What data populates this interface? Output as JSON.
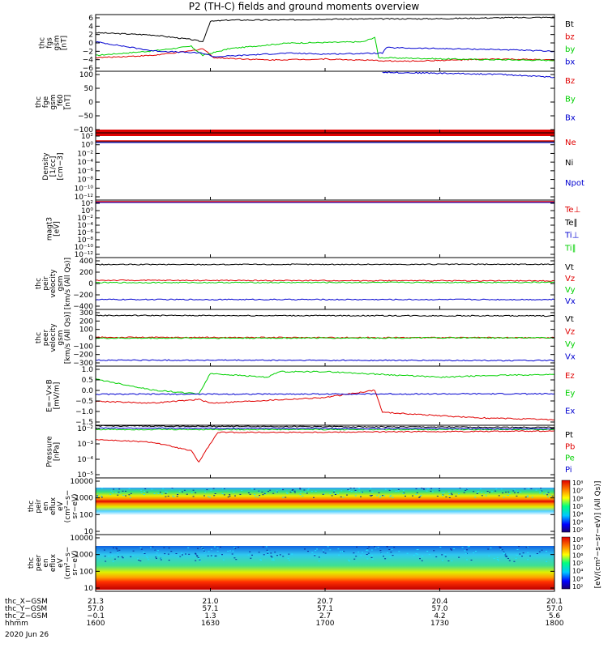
{
  "title": "P2 (TH-C) fields and ground moments overview",
  "date_label": "2020 Jun 26",
  "colors": {
    "black": "#000000",
    "red": "#e00000",
    "green": "#00d000",
    "blue": "#0000d0"
  },
  "chart_data": [
    {
      "type": "line",
      "ylabel_lines": [
        "thc",
        "fgs",
        "gsm",
        "[nT]"
      ],
      "yticks": [
        "6",
        "4",
        "2",
        "0",
        "−2",
        "−4",
        "−6"
      ],
      "ylim": [
        -6,
        6.5
      ],
      "legend": [
        {
          "name": "Bt",
          "color": "black"
        },
        {
          "name": "bz",
          "color": "red"
        },
        {
          "name": "by",
          "color": "green"
        },
        {
          "name": "bx",
          "color": "blue"
        }
      ],
      "series": [
        {
          "name": "Bt",
          "color": "black",
          "points": [
            [
              1600,
              2.5
            ],
            [
              1615,
              2.0
            ],
            [
              1625,
              1.0
            ],
            [
              1628,
              0.5
            ],
            [
              1630,
              5.0
            ],
            [
              1635,
              5.3
            ],
            [
              1650,
              5.3
            ],
            [
              1700,
              5.5
            ],
            [
              1730,
              5.6
            ],
            [
              1745,
              5.8
            ],
            [
              1800,
              5.9
            ]
          ]
        },
        {
          "name": "bz",
          "color": "red",
          "points": [
            [
              1600,
              -3.0
            ],
            [
              1615,
              -2.5
            ],
            [
              1625,
              -1.5
            ],
            [
              1628,
              -1.0
            ],
            [
              1631,
              -3.0
            ],
            [
              1645,
              -3.5
            ],
            [
              1700,
              -3.3
            ],
            [
              1720,
              -3.8
            ],
            [
              1745,
              -3.3
            ],
            [
              1800,
              -3.5
            ]
          ]
        },
        {
          "name": "by",
          "color": "green",
          "points": [
            [
              1600,
              -2.5
            ],
            [
              1615,
              -1.5
            ],
            [
              1625,
              -0.5
            ],
            [
              1628,
              -2.5
            ],
            [
              1635,
              -1.0
            ],
            [
              1650,
              0.2
            ],
            [
              1710,
              0.5
            ],
            [
              1713,
              1.5
            ],
            [
              1714,
              -3.0
            ],
            [
              1740,
              -3.4
            ],
            [
              1800,
              -3.6
            ]
          ]
        },
        {
          "name": "bx",
          "color": "blue",
          "points": [
            [
              1600,
              0.5
            ],
            [
              1615,
              -1.5
            ],
            [
              1628,
              -2.0
            ],
            [
              1631,
              -2.8
            ],
            [
              1650,
              -2.0
            ],
            [
              1700,
              -2.2
            ],
            [
              1715,
              -2.0
            ],
            [
              1716,
              -0.8
            ],
            [
              1745,
              -1.2
            ],
            [
              1800,
              -1.6
            ]
          ]
        }
      ]
    },
    {
      "type": "line",
      "ylabel_lines": [
        "thc",
        "fge",
        "gsm",
        "_f60",
        "[nT]"
      ],
      "yticks": [
        "100",
        "50",
        "0",
        "−50",
        "−100"
      ],
      "ylim": [
        -140,
        110
      ],
      "legend": [
        {
          "name": "Bz",
          "color": "red"
        },
        {
          "name": "By",
          "color": "green"
        },
        {
          "name": "Bx",
          "color": "blue"
        }
      ],
      "series": [
        {
          "name": "Bx",
          "color": "blue",
          "points": [
            [
              1715,
              106
            ],
            [
              1745,
              98
            ],
            [
              1800,
              86
            ]
          ]
        }
      ]
    },
    {
      "type": "line",
      "ylabel_lines": [
        "Density",
        "[1/cc]",
        "[cm−3]"
      ],
      "yticks": [
        "10²",
        "10⁰",
        "10⁻²",
        "10⁻⁴",
        "10⁻⁶",
        "10⁻⁸",
        "10⁻¹⁰",
        "10⁻¹²"
      ],
      "legend": [
        {
          "name": "Ne",
          "color": "red"
        },
        {
          "name": "Ni",
          "color": "black"
        },
        {
          "name": "Npot",
          "color": "blue"
        }
      ]
    },
    {
      "type": "line",
      "ylabel_lines": [
        "magt3",
        "[eV]"
      ],
      "yticks": [
        "10²",
        "10⁰",
        "10⁻²",
        "10⁻⁴",
        "10⁻⁶",
        "10⁻⁸",
        "10⁻¹⁰",
        "10⁻¹²"
      ],
      "legend": [
        {
          "name": "Te⊥",
          "color": "red"
        },
        {
          "name": "Te∥",
          "color": "black"
        },
        {
          "name": "Ti⊥",
          "color": "blue"
        },
        {
          "name": "Ti∥",
          "color": "green"
        }
      ]
    },
    {
      "type": "line",
      "ylabel_lines": [
        "thc",
        "peir",
        "velocity",
        "gsm",
        "[km/s (All Qs)]"
      ],
      "yticks": [
        "400",
        "200",
        "0",
        "−200",
        "−400"
      ],
      "ylim": [
        -470,
        420
      ],
      "legend": [
        {
          "name": "Vt",
          "color": "black"
        },
        {
          "name": "Vz",
          "color": "red"
        },
        {
          "name": "Vy",
          "color": "green"
        },
        {
          "name": "Vx",
          "color": "blue"
        }
      ],
      "series": [
        {
          "name": "Vt",
          "color": "black",
          "points": [
            [
              1600,
              300
            ],
            [
              1800,
              305
            ]
          ]
        },
        {
          "name": "Vz",
          "color": "red",
          "points": [
            [
              1600,
              30
            ],
            [
              1800,
              20
            ]
          ]
        },
        {
          "name": "Vy",
          "color": "green",
          "points": [
            [
              1600,
              -10
            ],
            [
              1800,
              -5
            ]
          ]
        },
        {
          "name": "Vx",
          "color": "blue",
          "points": [
            [
              1600,
              -300
            ],
            [
              1800,
              -300
            ]
          ]
        }
      ]
    },
    {
      "type": "line",
      "ylabel_lines": [
        "thc",
        "peer",
        "velocity",
        "gsm",
        "[km/s (All Qs)]"
      ],
      "yticks": [
        "300",
        "200",
        "100",
        "0",
        "−100",
        "−200",
        "−300"
      ],
      "ylim": [
        -330,
        330
      ],
      "legend": [
        {
          "name": "Vt",
          "color": "black"
        },
        {
          "name": "Vz",
          "color": "red"
        },
        {
          "name": "Vy",
          "color": "green"
        },
        {
          "name": "Vx",
          "color": "blue"
        }
      ],
      "series": [
        {
          "name": "Vt",
          "color": "black",
          "points": [
            [
              1600,
              260
            ],
            [
              1800,
              255
            ]
          ]
        },
        {
          "name": "Vz",
          "color": "red",
          "points": [
            [
              1600,
              5
            ],
            [
              1800,
              0
            ]
          ]
        },
        {
          "name": "Vy",
          "color": "green",
          "points": [
            [
              1600,
              -5
            ],
            [
              1800,
              0
            ]
          ]
        },
        {
          "name": "Vx",
          "color": "blue",
          "points": [
            [
              1600,
              -260
            ],
            [
              1800,
              -265
            ]
          ]
        }
      ]
    },
    {
      "type": "line",
      "ylabel_lines": [
        "E=−V×B",
        "[mV/m]"
      ],
      "yticks": [
        "1.0",
        "0.5",
        "0.0",
        "−0.5",
        "−1.0",
        "−1.5"
      ],
      "ylim": [
        -1.7,
        1.5
      ],
      "legend": [
        {
          "name": "Ez",
          "color": "red"
        },
        {
          "name": "Ey",
          "color": "green"
        },
        {
          "name": "Ex",
          "color": "blue"
        }
      ],
      "series": [
        {
          "name": "Ey",
          "color": "green",
          "points": [
            [
              1600,
              0.8
            ],
            [
              1615,
              0.2
            ],
            [
              1627,
              0.0
            ],
            [
              1630,
              1.1
            ],
            [
              1645,
              0.9
            ],
            [
              1648,
              1.2
            ],
            [
              1700,
              1.2
            ],
            [
              1730,
              0.9
            ],
            [
              1745,
              1.0
            ],
            [
              1800,
              1.05
            ]
          ]
        },
        {
          "name": "Ez",
          "color": "red",
          "points": [
            [
              1600,
              -0.4
            ],
            [
              1615,
              -0.5
            ],
            [
              1627,
              -0.3
            ],
            [
              1630,
              -0.5
            ],
            [
              1700,
              -0.2
            ],
            [
              1713,
              0.2
            ],
            [
              1715,
              -1.0
            ],
            [
              1740,
              -1.3
            ],
            [
              1800,
              -1.4
            ]
          ]
        },
        {
          "name": "Ex",
          "color": "blue",
          "points": [
            [
              1600,
              -0.02
            ],
            [
              1800,
              0.0
            ]
          ]
        }
      ]
    },
    {
      "type": "line",
      "ylabel_lines": [
        "Pressure",
        "[nPa]"
      ],
      "yticks": [
        "10⁻²",
        "10⁻³",
        "10⁻⁴",
        "10⁻⁵"
      ],
      "ylim": [
        -5.5,
        -1.8
      ],
      "legend": [
        {
          "name": "Pt",
          "color": "black"
        },
        {
          "name": "Pb",
          "color": "red"
        },
        {
          "name": "Pe",
          "color": "green"
        },
        {
          "name": "Pi",
          "color": "blue"
        }
      ],
      "series": [
        {
          "name": "Pt",
          "color": "black",
          "points": [
            [
              1600,
              -1.85
            ],
            [
              1800,
              -1.95
            ]
          ]
        },
        {
          "name": "Pb",
          "color": "red",
          "points": [
            [
              1600,
              -2.8
            ],
            [
              1615,
              -3.0
            ],
            [
              1625,
              -3.6
            ],
            [
              1627,
              -4.4
            ],
            [
              1629,
              -3.5
            ],
            [
              1632,
              -2.3
            ],
            [
              1650,
              -2.3
            ],
            [
              1800,
              -2.2
            ]
          ]
        },
        {
          "name": "Pe",
          "color": "green",
          "points": [
            [
              1600,
              -2.1
            ],
            [
              1800,
              -2.1
            ]
          ]
        },
        {
          "name": "Pi",
          "color": "blue",
          "points": [
            [
              1600,
              -2.0
            ],
            [
              1800,
              -2.05
            ]
          ]
        }
      ]
    },
    {
      "type": "heatmap",
      "ylabel_lines": [
        "thc",
        "peir",
        "en",
        "eflux",
        "eV",
        "(cm²−s−",
        "sr−eV)"
      ],
      "yticks": [
        "10000",
        "1000",
        "100",
        "10"
      ],
      "colorbar_label": "[eV/(cm²−s−sr−eV)] (All Qs)]",
      "colorbar_ticks": [
        "10⁸",
        "10⁷",
        "10⁶",
        "10⁵",
        "10⁴",
        "10³",
        "10²"
      ]
    },
    {
      "type": "heatmap",
      "ylabel_lines": [
        "thc",
        "peer",
        "en",
        "eflux",
        "eV",
        "(cm²−s−",
        "sr−eV)"
      ],
      "yticks": [
        "10000",
        "1000",
        "100",
        "10"
      ],
      "colorbar_label": "[eV/(cm²−s−sr−eV)] (All Qs)]",
      "colorbar_ticks": [
        "10⁸",
        "10⁷",
        "10⁶",
        "10⁵",
        "10⁴",
        "10³",
        "10²"
      ]
    }
  ],
  "xaxis": {
    "row_labels": [
      "thc_X−GSM",
      "thc_Y−GSM",
      "thc_Z−GSM",
      "hhmm"
    ],
    "columns": [
      {
        "vals": [
          "21.3",
          "57.0",
          "−0.1",
          "1600"
        ]
      },
      {
        "vals": [
          "21.0",
          "57.1",
          "1.3",
          "1630"
        ]
      },
      {
        "vals": [
          "20.7",
          "57.1",
          "2.7",
          "1700"
        ]
      },
      {
        "vals": [
          "20.4",
          "57.0",
          "4.2",
          "1730"
        ]
      },
      {
        "vals": [
          "20.1",
          "57.0",
          "5.6",
          "1800"
        ]
      }
    ]
  }
}
